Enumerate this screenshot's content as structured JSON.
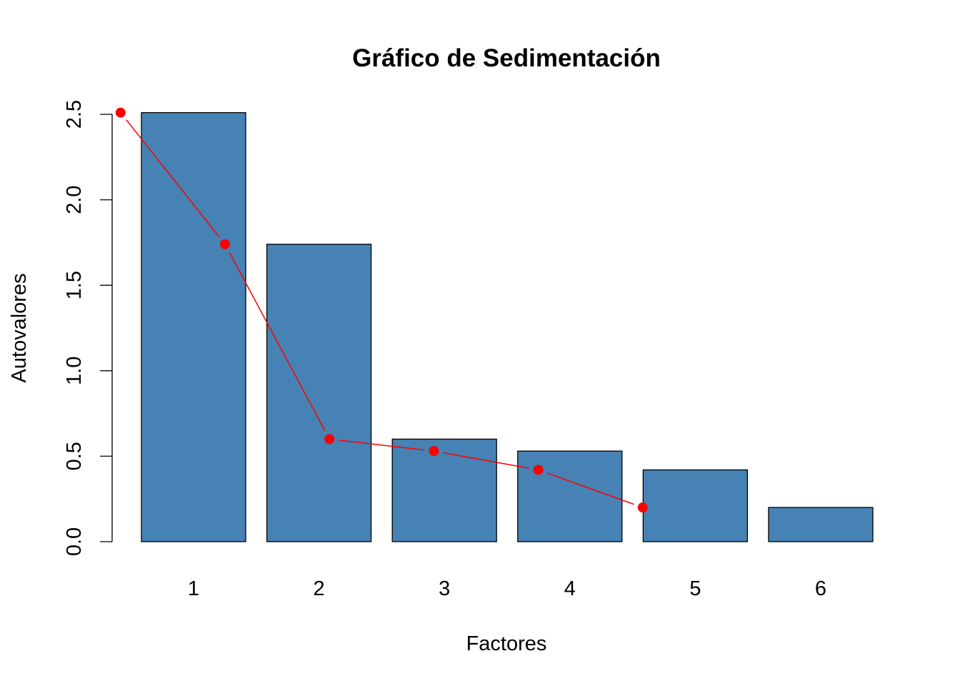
{
  "chart_data": {
    "type": "bar",
    "title": "Gráfico de Sedimentación",
    "xlabel": "Factores",
    "ylabel": "Autovalores",
    "categories": [
      "1",
      "2",
      "3",
      "4",
      "5",
      "6"
    ],
    "values": [
      2.51,
      1.74,
      0.6,
      0.53,
      0.42,
      0.2
    ],
    "ylim": [
      0,
      2.5
    ],
    "yticks": [
      "0.0",
      "0.5",
      "1.0",
      "1.5",
      "2.0",
      "2.5"
    ],
    "bar_color": "#4682B4",
    "overlay_line": {
      "type": "line",
      "color": "#FF0000",
      "points": [
        2.51,
        1.74,
        0.6,
        0.53,
        0.42,
        0.2
      ]
    },
    "grid": false,
    "legend": "none"
  }
}
